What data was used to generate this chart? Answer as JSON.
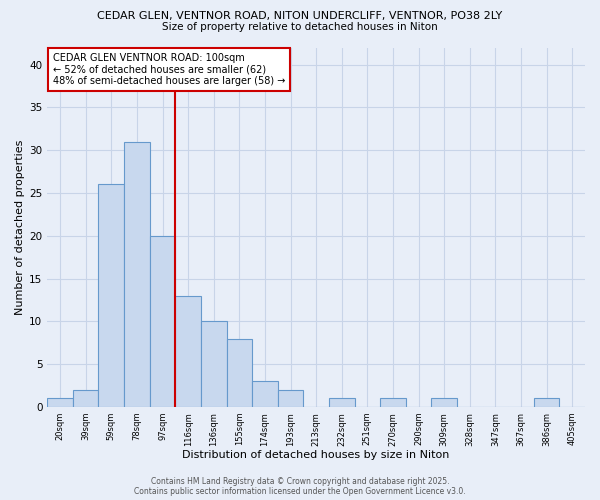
{
  "title_line1": "CEDAR GLEN, VENTNOR ROAD, NITON UNDERCLIFF, VENTNOR, PO38 2LY",
  "title_line2": "Size of property relative to detached houses in Niton",
  "xlabel": "Distribution of detached houses by size in Niton",
  "ylabel": "Number of detached properties",
  "categories": [
    "20sqm",
    "39sqm",
    "59sqm",
    "78sqm",
    "97sqm",
    "116sqm",
    "136sqm",
    "155sqm",
    "174sqm",
    "193sqm",
    "213sqm",
    "232sqm",
    "251sqm",
    "270sqm",
    "290sqm",
    "309sqm",
    "328sqm",
    "347sqm",
    "367sqm",
    "386sqm",
    "405sqm"
  ],
  "values": [
    1,
    2,
    26,
    31,
    20,
    13,
    10,
    8,
    3,
    2,
    0,
    1,
    0,
    1,
    0,
    1,
    0,
    0,
    0,
    1,
    0
  ],
  "bar_color": "#c8d8ee",
  "bar_edge_color": "#6699cc",
  "bar_width": 1.0,
  "vline_x": 4.5,
  "vline_color": "#cc0000",
  "annotation_text": "CEDAR GLEN VENTNOR ROAD: 100sqm\n← 52% of detached houses are smaller (62)\n48% of semi-detached houses are larger (58) →",
  "annotation_box_color": "#ffffff",
  "annotation_box_edge": "#cc0000",
  "ylim": [
    0,
    42
  ],
  "yticks": [
    0,
    5,
    10,
    15,
    20,
    25,
    30,
    35,
    40
  ],
  "footer_text": "Contains HM Land Registry data © Crown copyright and database right 2025.\nContains public sector information licensed under the Open Government Licence v3.0.",
  "background_color": "#e8eef8",
  "grid_color": "#c8d4e8",
  "plot_bg_color": "#dde6f4"
}
